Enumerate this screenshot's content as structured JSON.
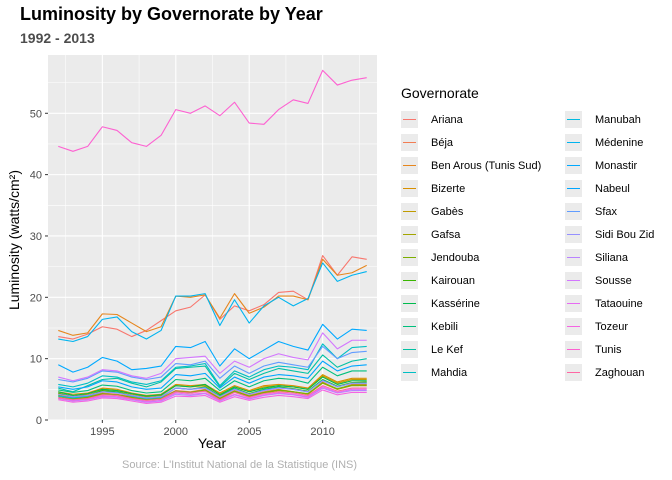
{
  "chart_data": {
    "type": "line",
    "title": "Luminosity by Governorate by Year",
    "subtitle": "1992 - 2013",
    "xlabel": "Year",
    "ylabel": "Luminosity (watts/cm²)",
    "caption": "Source: L'Institut National de la Statistique (INS)",
    "legend_title": "Governorate",
    "legend_position": "right",
    "grid": true,
    "xlim": [
      1991.3,
      2013.7
    ],
    "ylim": [
      0,
      59.5
    ],
    "xticks": [
      1995,
      2000,
      2005,
      2010
    ],
    "yticks": [
      0,
      10,
      20,
      30,
      40,
      50
    ],
    "x": [
      1992,
      1993,
      1994,
      1995,
      1996,
      1997,
      1998,
      1999,
      2000,
      2001,
      2002,
      2003,
      2004,
      2005,
      2006,
      2007,
      2008,
      2009,
      2010,
      2011,
      2012,
      2013
    ],
    "series": [
      {
        "name": "Ariana",
        "color": "#F8766D",
        "values": [
          13.6,
          13.2,
          14.0,
          15.2,
          14.8,
          13.6,
          14.6,
          16.2,
          17.8,
          18.4,
          20.4,
          16.4,
          18.6,
          17.8,
          18.8,
          20.8,
          21.0,
          19.6,
          26.8,
          23.6,
          26.6,
          26.2
        ]
      },
      {
        "name": "Béja",
        "color": "#F27D53",
        "values": [
          4.2,
          3.6,
          3.8,
          4.4,
          4.2,
          3.8,
          3.4,
          3.6,
          4.8,
          4.6,
          5.0,
          3.6,
          4.8,
          4.0,
          4.6,
          5.0,
          4.6,
          4.2,
          6.2,
          5.0,
          5.8,
          5.8
        ]
      },
      {
        "name": "Ben Arous (Tunis Sud)",
        "color": "#E6861D",
        "values": [
          14.6,
          13.8,
          14.2,
          17.3,
          17.2,
          15.8,
          14.4,
          15.2,
          20.2,
          20.0,
          20.4,
          16.6,
          20.6,
          17.4,
          18.4,
          20.2,
          20.2,
          19.6,
          26.2,
          23.6,
          24.0,
          25.2
        ]
      },
      {
        "name": "Bizerte",
        "color": "#D89000",
        "values": [
          4.6,
          4.2,
          4.4,
          5.2,
          5.0,
          4.4,
          4.0,
          4.2,
          5.8,
          5.6,
          5.8,
          4.4,
          5.6,
          4.8,
          5.6,
          5.8,
          5.6,
          5.2,
          7.4,
          6.2,
          6.8,
          6.8
        ]
      },
      {
        "name": "Gabès",
        "color": "#C09B00",
        "values": [
          4.4,
          3.8,
          4.2,
          5.0,
          4.8,
          4.2,
          3.8,
          4.0,
          5.6,
          5.4,
          5.6,
          4.2,
          5.4,
          4.6,
          5.4,
          5.6,
          5.4,
          5.0,
          7.2,
          6.0,
          6.6,
          6.6
        ]
      },
      {
        "name": "Gafsa",
        "color": "#A3A500",
        "values": [
          3.8,
          3.4,
          3.6,
          4.2,
          4.0,
          3.6,
          3.2,
          3.4,
          4.6,
          4.4,
          4.8,
          3.4,
          4.6,
          3.8,
          4.4,
          4.8,
          4.6,
          4.2,
          6.0,
          5.0,
          5.6,
          5.6
        ]
      },
      {
        "name": "Jendouba",
        "color": "#7CAE00",
        "values": [
          4.0,
          3.5,
          3.7,
          4.3,
          4.1,
          3.7,
          3.3,
          3.5,
          4.7,
          4.5,
          4.9,
          3.5,
          4.7,
          3.9,
          4.5,
          4.9,
          4.6,
          4.3,
          6.1,
          5.1,
          5.7,
          5.7
        ]
      },
      {
        "name": "Kairouan",
        "color": "#39B600",
        "values": [
          4.3,
          3.8,
          4.0,
          4.8,
          4.6,
          4.0,
          3.6,
          3.8,
          5.2,
          5.0,
          5.4,
          3.9,
          5.2,
          4.3,
          5.0,
          5.4,
          5.1,
          4.7,
          6.6,
          5.5,
          6.1,
          6.2
        ]
      },
      {
        "name": "Kassérine",
        "color": "#00BB4E",
        "values": [
          4.6,
          4.0,
          4.3,
          5.0,
          4.8,
          4.3,
          3.9,
          4.1,
          5.6,
          5.4,
          5.8,
          4.1,
          5.4,
          4.6,
          5.2,
          5.6,
          5.4,
          5.0,
          7.0,
          5.8,
          6.4,
          6.4
        ]
      },
      {
        "name": "Kebili",
        "color": "#00BF7D",
        "values": [
          4.9,
          4.5,
          4.8,
          5.7,
          5.5,
          4.8,
          4.4,
          4.6,
          6.6,
          6.4,
          6.8,
          4.8,
          6.4,
          5.4,
          6.4,
          6.8,
          6.6,
          6.0,
          8.6,
          7.2,
          8.0,
          8.0
        ]
      },
      {
        "name": "Le Kef",
        "color": "#00C1A3",
        "values": [
          5.2,
          4.6,
          5.6,
          6.6,
          6.8,
          6.0,
          5.4,
          6.2,
          8.4,
          8.6,
          8.8,
          5.4,
          7.6,
          6.6,
          7.6,
          8.4,
          8.0,
          7.6,
          10.6,
          8.6,
          9.6,
          10.0
        ]
      },
      {
        "name": "Mahdia",
        "color": "#00BFC4",
        "values": [
          5.8,
          5.4,
          6.0,
          7.2,
          7.0,
          6.2,
          5.8,
          6.4,
          8.6,
          8.8,
          9.2,
          5.6,
          8.0,
          7.0,
          8.2,
          8.8,
          8.6,
          8.2,
          12.4,
          10.0,
          11.8,
          12.0
        ]
      },
      {
        "name": "Manubah",
        "color": "#00BAE0",
        "values": [
          3.9,
          3.6,
          3.9,
          4.6,
          4.5,
          3.9,
          3.5,
          3.7,
          5.2,
          5.0,
          5.3,
          3.8,
          5.1,
          4.2,
          4.9,
          5.3,
          5.0,
          4.6,
          6.5,
          5.4,
          6.0,
          6.0
        ]
      },
      {
        "name": "Médenine",
        "color": "#00B4EF",
        "values": [
          13.2,
          12.8,
          13.6,
          16.4,
          16.8,
          14.4,
          13.2,
          14.6,
          20.2,
          20.2,
          20.6,
          15.4,
          19.6,
          15.8,
          18.6,
          20.0,
          18.6,
          19.8,
          25.6,
          22.6,
          23.6,
          24.2
        ]
      },
      {
        "name": "Monastir",
        "color": "#00A9FF",
        "values": [
          9.0,
          7.8,
          8.6,
          10.2,
          9.6,
          8.2,
          8.4,
          8.8,
          12.0,
          11.8,
          12.8,
          8.8,
          11.6,
          10.0,
          11.4,
          12.8,
          12.0,
          11.4,
          15.6,
          13.2,
          14.8,
          14.6
        ]
      },
      {
        "name": "Nabeul",
        "color": "#00A6FF",
        "values": [
          5.4,
          5.0,
          5.4,
          6.4,
          6.2,
          5.4,
          5.0,
          5.2,
          7.4,
          7.2,
          7.6,
          5.2,
          7.0,
          6.0,
          7.0,
          7.4,
          7.2,
          6.8,
          9.6,
          8.0,
          8.8,
          9.0
        ]
      },
      {
        "name": "Sfax",
        "color": "#619CFF",
        "values": [
          6.6,
          6.2,
          6.8,
          8.0,
          7.8,
          7.0,
          6.6,
          7.0,
          9.2,
          9.0,
          9.6,
          6.8,
          8.8,
          7.6,
          8.8,
          9.4,
          9.0,
          8.6,
          12.0,
          10.0,
          11.0,
          11.2
        ]
      },
      {
        "name": "Sidi Bou Zid",
        "color": "#9590FF",
        "values": [
          4.2,
          3.8,
          4.0,
          4.6,
          4.4,
          4.0,
          3.6,
          3.8,
          5.2,
          5.0,
          5.2,
          3.8,
          5.0,
          4.2,
          4.8,
          5.2,
          5.0,
          4.6,
          6.4,
          5.4,
          6.0,
          6.0
        ]
      },
      {
        "name": "Siliana",
        "color": "#B983FF",
        "values": [
          3.5,
          3.1,
          3.3,
          3.8,
          3.7,
          3.3,
          2.9,
          3.1,
          4.2,
          4.0,
          4.3,
          3.1,
          4.1,
          3.4,
          4.0,
          4.3,
          4.1,
          3.7,
          5.2,
          4.4,
          4.8,
          4.8
        ]
      },
      {
        "name": "Sousse",
        "color": "#D376FF",
        "values": [
          7.0,
          6.4,
          7.0,
          8.2,
          8.0,
          7.2,
          6.8,
          7.6,
          10.0,
          10.2,
          10.4,
          7.6,
          9.6,
          8.6,
          10.0,
          10.8,
          10.2,
          9.8,
          14.2,
          11.6,
          13.0,
          13.0
        ]
      },
      {
        "name": "Tataouine",
        "color": "#E76BF3",
        "values": [
          3.6,
          3.2,
          3.4,
          3.9,
          3.8,
          3.4,
          3.0,
          3.2,
          4.4,
          4.2,
          4.4,
          3.2,
          4.2,
          3.5,
          4.1,
          4.4,
          4.2,
          3.8,
          5.4,
          4.5,
          5.0,
          5.0
        ]
      },
      {
        "name": "Tozeur",
        "color": "#F564E3",
        "values": [
          3.3,
          2.9,
          3.1,
          3.6,
          3.5,
          3.1,
          2.7,
          2.9,
          3.9,
          3.8,
          4.0,
          2.9,
          3.8,
          3.2,
          3.7,
          4.0,
          3.8,
          3.5,
          4.9,
          4.1,
          4.5,
          4.5
        ]
      },
      {
        "name": "Tunis",
        "color": "#FD61D1",
        "values": [
          44.6,
          43.8,
          44.6,
          47.8,
          47.2,
          45.2,
          44.6,
          46.4,
          50.6,
          50.0,
          51.2,
          49.6,
          51.8,
          48.4,
          48.2,
          50.6,
          52.2,
          51.6,
          57.0,
          54.6,
          55.4,
          55.8
        ]
      },
      {
        "name": "Zaghouan",
        "color": "#FF67A4",
        "values": [
          3.6,
          3.3,
          3.5,
          4.1,
          4.0,
          3.5,
          3.2,
          3.4,
          4.6,
          4.4,
          4.7,
          3.3,
          4.5,
          3.7,
          4.3,
          4.6,
          4.4,
          4.0,
          5.6,
          4.7,
          5.2,
          5.2
        ]
      }
    ]
  }
}
